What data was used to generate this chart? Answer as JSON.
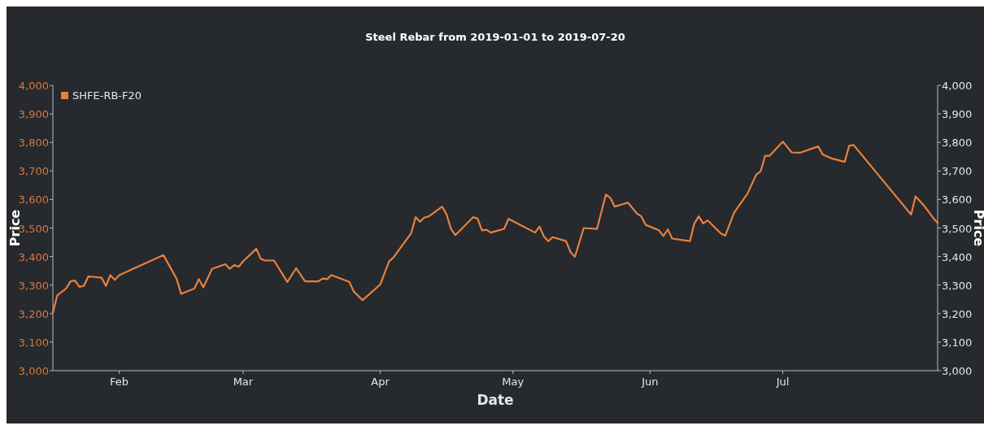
{
  "chart_data": {
    "type": "line",
    "title": "Steel Rebar from 2019-01-01 to 2019-07-20",
    "xlabel": "Date",
    "ylabel": "Price",
    "y2label": "Price",
    "xlim": [
      "2019-01-17",
      "2019-08-05"
    ],
    "xticks": [
      {
        "value": "2019-02-01",
        "label": "Feb"
      },
      {
        "value": "2019-03-01",
        "label": "Mar"
      },
      {
        "value": "2019-04-01",
        "label": "Apr"
      },
      {
        "value": "2019-05-01",
        "label": "May"
      },
      {
        "value": "2019-06-01",
        "label": "Jun"
      },
      {
        "value": "2019-07-01",
        "label": "Jul"
      }
    ],
    "ylim": [
      3000,
      4000
    ],
    "yticks": [
      {
        "value": 3000,
        "label": "3,000"
      },
      {
        "value": 3100,
        "label": "3,100"
      },
      {
        "value": 3200,
        "label": "3,200"
      },
      {
        "value": 3300,
        "label": "3,300"
      },
      {
        "value": 3400,
        "label": "3,400"
      },
      {
        "value": 3500,
        "label": "3,500"
      },
      {
        "value": 3600,
        "label": "3,600"
      },
      {
        "value": 3700,
        "label": "3,700"
      },
      {
        "value": 3800,
        "label": "3,800"
      },
      {
        "value": 3900,
        "label": "3,900"
      },
      {
        "value": 4000,
        "label": "4,000"
      }
    ],
    "y2lim": [
      3000,
      4000
    ],
    "y2ticks": [
      {
        "value": 3000,
        "label": "3,000"
      },
      {
        "value": 3100,
        "label": "3,100"
      },
      {
        "value": 3200,
        "label": "3,200"
      },
      {
        "value": 3300,
        "label": "3,300"
      },
      {
        "value": 3400,
        "label": "3,400"
      },
      {
        "value": 3500,
        "label": "3,500"
      },
      {
        "value": 3600,
        "label": "3,600"
      },
      {
        "value": 3700,
        "label": "3,700"
      },
      {
        "value": 3800,
        "label": "3,800"
      },
      {
        "value": 3900,
        "label": "3,900"
      },
      {
        "value": 4000,
        "label": "4,000"
      }
    ],
    "grid": false,
    "legend": "top left",
    "marker": "none",
    "line_style": "solid",
    "series": [
      {
        "name": "SHFE-RB-F20",
        "color": "#e8813d",
        "x": [
          "2019-01-17",
          "2019-01-18",
          "2019-01-20",
          "2019-01-21",
          "2019-01-22",
          "2019-01-23",
          "2019-01-24",
          "2019-01-25",
          "2019-01-26",
          "2019-01-28",
          "2019-01-29",
          "2019-01-30",
          "2019-01-31",
          "2019-02-01",
          "2019-02-11",
          "2019-02-14",
          "2019-02-15",
          "2019-02-18",
          "2019-02-19",
          "2019-02-20",
          "2019-02-22",
          "2019-02-25",
          "2019-02-26",
          "2019-02-27",
          "2019-02-28",
          "2019-03-01",
          "2019-03-04",
          "2019-03-05",
          "2019-03-06",
          "2019-03-08",
          "2019-03-11",
          "2019-03-13",
          "2019-03-15",
          "2019-03-18",
          "2019-03-19",
          "2019-03-20",
          "2019-03-21",
          "2019-03-25",
          "2019-03-26",
          "2019-03-28",
          "2019-04-01",
          "2019-04-03",
          "2019-04-04",
          "2019-04-08",
          "2019-04-09",
          "2019-04-10",
          "2019-04-11",
          "2019-04-12",
          "2019-04-15",
          "2019-04-16",
          "2019-04-17",
          "2019-04-18",
          "2019-04-22",
          "2019-04-23",
          "2019-04-24",
          "2019-04-25",
          "2019-04-26",
          "2019-04-29",
          "2019-04-30",
          "2019-05-06",
          "2019-05-07",
          "2019-05-08",
          "2019-05-09",
          "2019-05-10",
          "2019-05-13",
          "2019-05-14",
          "2019-05-15",
          "2019-05-17",
          "2019-05-20",
          "2019-05-22",
          "2019-05-23",
          "2019-05-24",
          "2019-05-27",
          "2019-05-29",
          "2019-05-30",
          "2019-05-31",
          "2019-06-03",
          "2019-06-04",
          "2019-06-05",
          "2019-06-06",
          "2019-06-10",
          "2019-06-11",
          "2019-06-12",
          "2019-06-13",
          "2019-06-14",
          "2019-06-17",
          "2019-06-18",
          "2019-06-20",
          "2019-06-23",
          "2019-06-25",
          "2019-06-26",
          "2019-06-27",
          "2019-06-28",
          "2019-07-01",
          "2019-07-03",
          "2019-07-05",
          "2019-07-09",
          "2019-07-10",
          "2019-07-12",
          "2019-07-15",
          "2019-07-16",
          "2019-07-17",
          "2019-07-30",
          "2019-07-31",
          "2019-08-02",
          "2019-08-04",
          "2019-08-05"
        ],
        "values": [
          3202,
          3264,
          3288,
          3313,
          3316,
          3294,
          3297,
          3330,
          3329,
          3326,
          3297,
          3335,
          3318,
          3335,
          3405,
          3321,
          3269,
          3288,
          3321,
          3292,
          3357,
          3373,
          3357,
          3370,
          3364,
          3383,
          3427,
          3392,
          3386,
          3386,
          3311,
          3359,
          3313,
          3313,
          3323,
          3321,
          3335,
          3311,
          3278,
          3247,
          3302,
          3383,
          3397,
          3482,
          3538,
          3522,
          3537,
          3541,
          3575,
          3547,
          3497,
          3475,
          3538,
          3533,
          3492,
          3494,
          3484,
          3497,
          3532,
          3484,
          3505,
          3470,
          3454,
          3468,
          3454,
          3416,
          3399,
          3500,
          3497,
          3617,
          3606,
          3575,
          3589,
          3551,
          3541,
          3511,
          3492,
          3472,
          3495,
          3463,
          3454,
          3516,
          3541,
          3516,
          3527,
          3481,
          3473,
          3554,
          3620,
          3687,
          3699,
          3753,
          3753,
          3803,
          3765,
          3764,
          3786,
          3758,
          3744,
          3732,
          3788,
          3791,
          3547,
          3611,
          3577,
          3535,
          3518
        ]
      }
    ]
  }
}
